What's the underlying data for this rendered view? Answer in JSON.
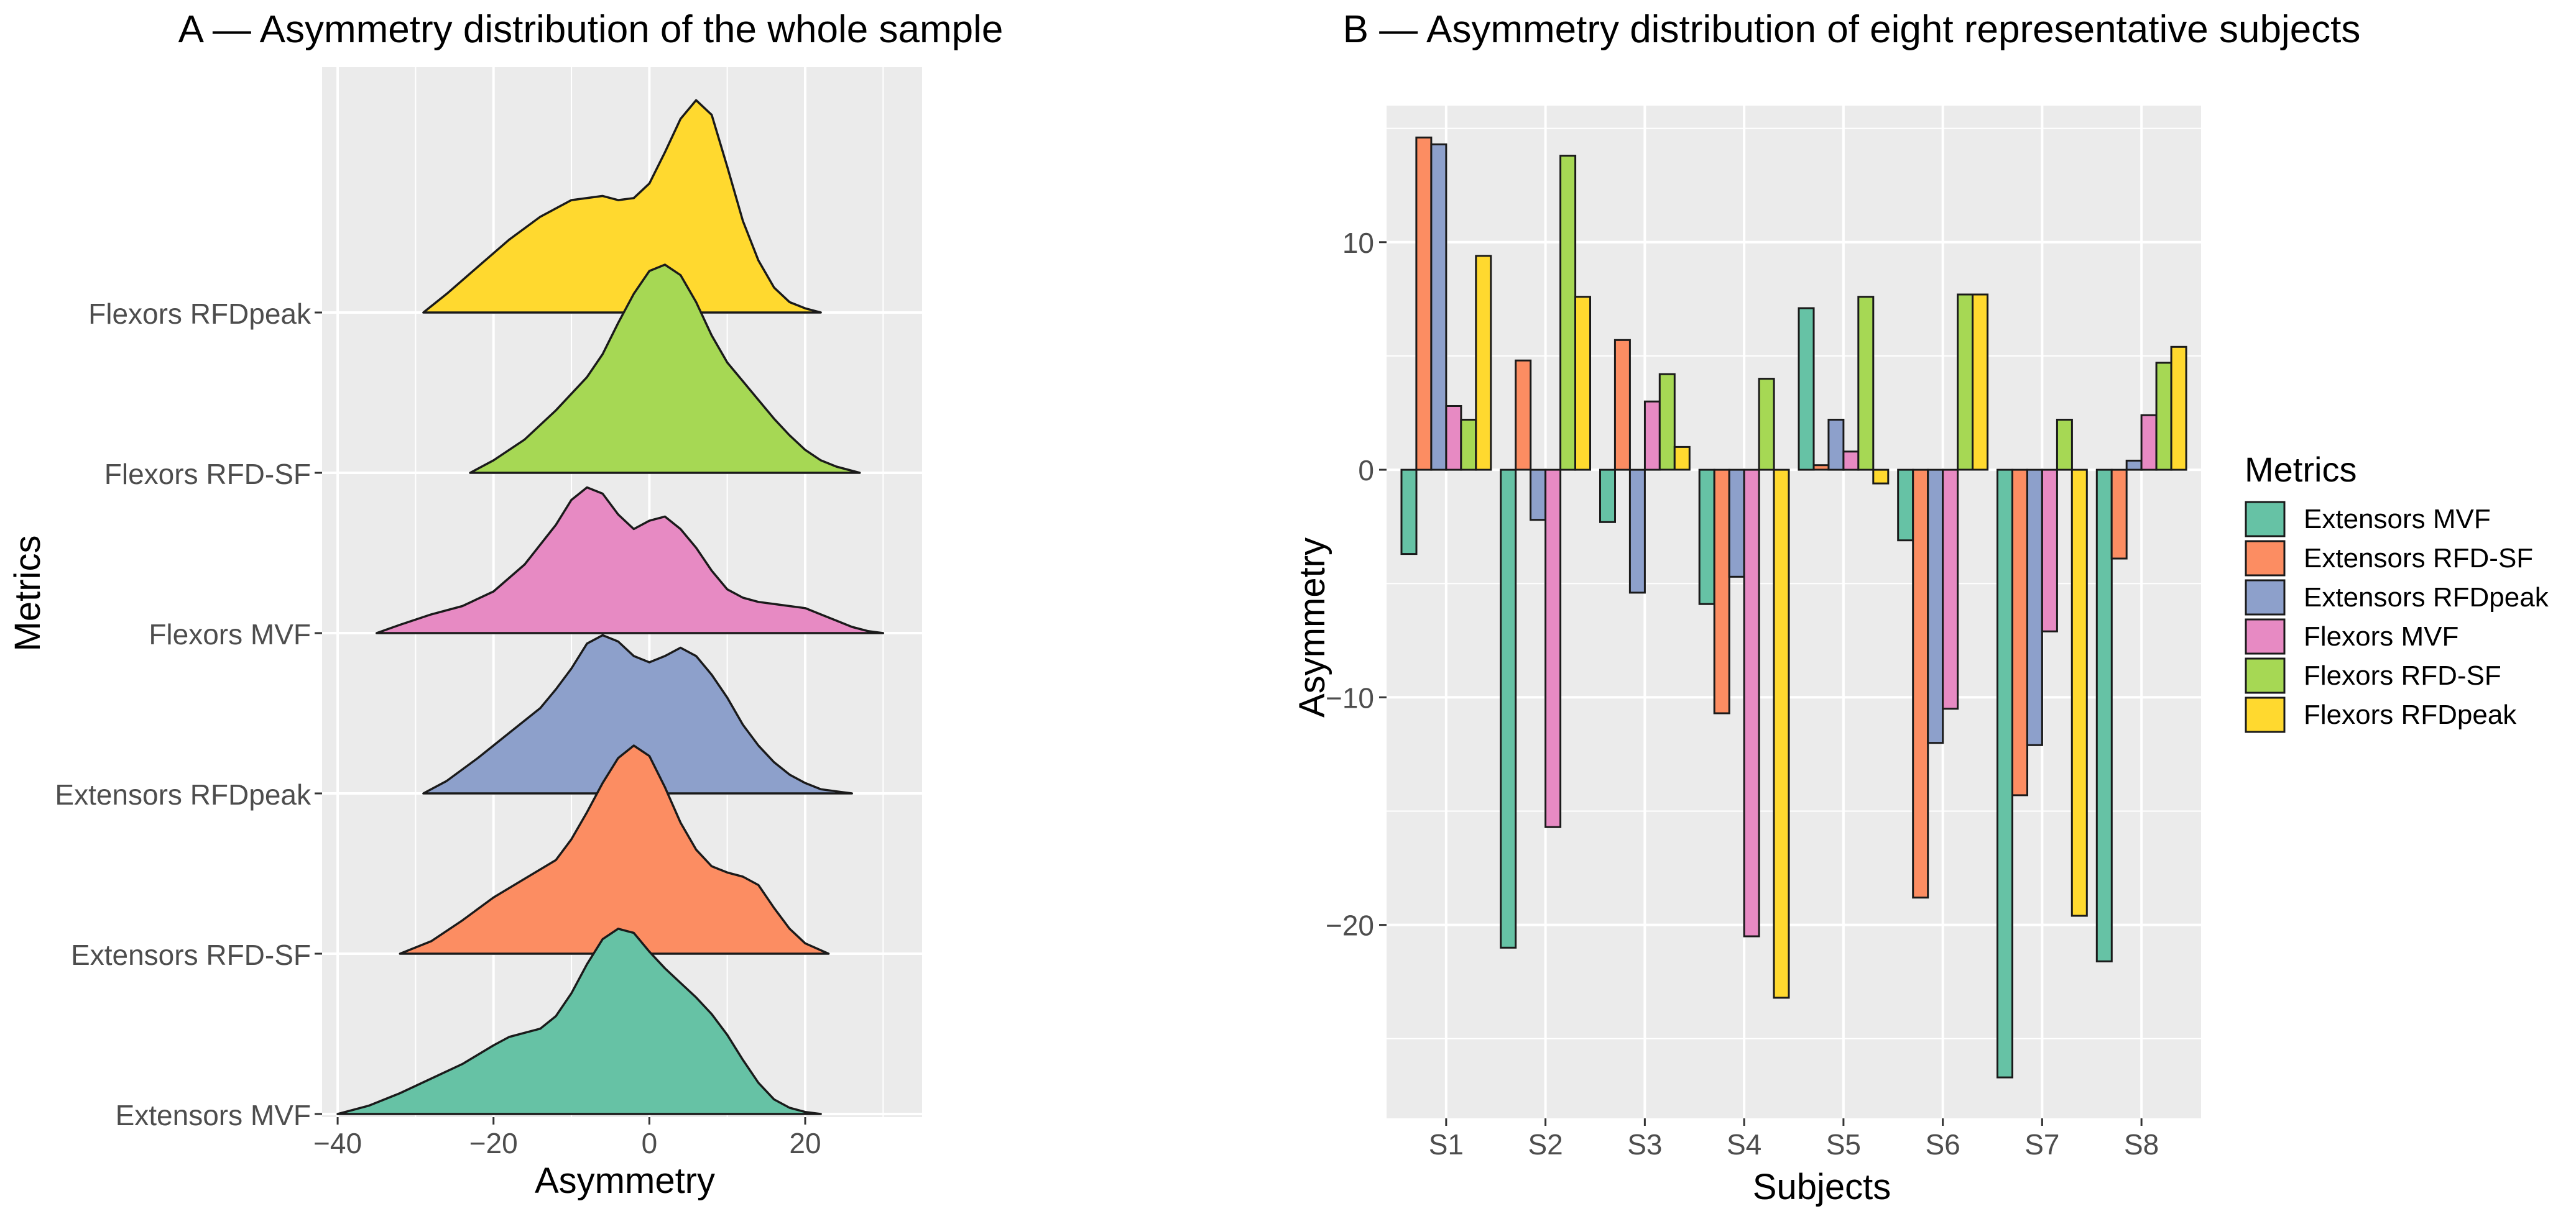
{
  "figure": {
    "panel_a_title": "A — Asymmetry distribution of the whole sample",
    "panel_b_title": "B — Asymmetry distribution of eight representative subjects"
  },
  "palette": {
    "Extensors MVF": "#66c2a5",
    "Extensors RFD-SF": "#fc8d62",
    "Extensors RFDpeak": "#8da0cb",
    "Flexors MVF": "#e78ac3",
    "Flexors RFD-SF": "#a6d854",
    "Flexors RFDpeak": "#ffd92f",
    "panel_bg": "#ebebeb",
    "grid": "#ffffff",
    "outline": "#1a1a1a"
  },
  "chart_data": [
    {
      "type": "ridgeline",
      "title": "A — Asymmetry distribution of the whole sample",
      "xlabel": "Asymmetry",
      "ylabel": "Metrics",
      "xlim": [
        -42,
        35
      ],
      "xticks": [
        -40,
        -20,
        0,
        20
      ],
      "categories": [
        "Extensors MVF",
        "Extensors RFD-SF",
        "Extensors RFDpeak",
        "Flexors MVF",
        "Flexors RFD-SF",
        "Flexors RFDpeak"
      ],
      "series": [
        {
          "name": "Extensors MVF",
          "x": [
            -40,
            -36,
            -32,
            -28,
            -24,
            -20,
            -18,
            -16,
            -14,
            -12,
            -10,
            -8,
            -6,
            -4,
            -2,
            0,
            2,
            4,
            6,
            8,
            10,
            12,
            14,
            16,
            18,
            20,
            22
          ],
          "density": [
            0,
            0.04,
            0.1,
            0.17,
            0.24,
            0.33,
            0.37,
            0.39,
            0.41,
            0.47,
            0.58,
            0.72,
            0.84,
            0.89,
            0.87,
            0.78,
            0.7,
            0.63,
            0.56,
            0.48,
            0.38,
            0.26,
            0.15,
            0.07,
            0.03,
            0.01,
            0
          ]
        },
        {
          "name": "Extensors RFD-SF",
          "x": [
            -32,
            -28,
            -24,
            -20,
            -16,
            -12,
            -10,
            -8,
            -6,
            -4,
            -2,
            0,
            2,
            4,
            6,
            8,
            10,
            12,
            14,
            16,
            18,
            20,
            23
          ],
          "density": [
            0,
            0.06,
            0.16,
            0.27,
            0.36,
            0.45,
            0.55,
            0.68,
            0.82,
            0.94,
            1.0,
            0.95,
            0.8,
            0.63,
            0.5,
            0.42,
            0.39,
            0.37,
            0.33,
            0.22,
            0.12,
            0.05,
            0
          ]
        },
        {
          "name": "Extensors RFDpeak",
          "x": [
            -29,
            -26,
            -22,
            -18,
            -14,
            -12,
            -10,
            -8,
            -6,
            -4,
            -2,
            0,
            2,
            4,
            6,
            8,
            10,
            12,
            14,
            16,
            18,
            20,
            22,
            24,
            26
          ],
          "density": [
            0,
            0.06,
            0.17,
            0.29,
            0.41,
            0.5,
            0.6,
            0.72,
            0.76,
            0.73,
            0.66,
            0.63,
            0.66,
            0.7,
            0.66,
            0.57,
            0.46,
            0.33,
            0.23,
            0.15,
            0.09,
            0.05,
            0.02,
            0.01,
            0
          ]
        },
        {
          "name": "Flexors MVF",
          "x": [
            -35,
            -32,
            -28,
            -24,
            -20,
            -16,
            -12,
            -10,
            -8,
            -6,
            -4,
            -2,
            0,
            2,
            4,
            6,
            8,
            10,
            12,
            14,
            16,
            18,
            20,
            22,
            24,
            26,
            28,
            30
          ],
          "density": [
            0,
            0.04,
            0.09,
            0.13,
            0.2,
            0.33,
            0.52,
            0.64,
            0.7,
            0.67,
            0.57,
            0.5,
            0.54,
            0.56,
            0.5,
            0.41,
            0.3,
            0.21,
            0.17,
            0.15,
            0.14,
            0.13,
            0.12,
            0.09,
            0.06,
            0.03,
            0.01,
            0
          ]
        },
        {
          "name": "Flexors RFD-SF",
          "x": [
            -23,
            -20,
            -16,
            -12,
            -8,
            -6,
            -4,
            -2,
            0,
            2,
            4,
            6,
            8,
            10,
            12,
            14,
            16,
            18,
            20,
            22,
            24,
            27
          ],
          "density": [
            0,
            0.06,
            0.16,
            0.3,
            0.46,
            0.57,
            0.72,
            0.86,
            0.97,
            1.0,
            0.95,
            0.82,
            0.66,
            0.53,
            0.44,
            0.35,
            0.26,
            0.18,
            0.11,
            0.06,
            0.03,
            0
          ]
        },
        {
          "name": "Flexors RFDpeak",
          "x": [
            -29,
            -26,
            -22,
            -18,
            -14,
            -10,
            -6,
            -4,
            -2,
            0,
            2,
            4,
            6,
            8,
            10,
            12,
            14,
            16,
            18,
            20,
            22
          ],
          "density": [
            0,
            0.09,
            0.22,
            0.35,
            0.46,
            0.54,
            0.56,
            0.54,
            0.55,
            0.62,
            0.77,
            0.93,
            1.02,
            0.95,
            0.7,
            0.44,
            0.25,
            0.12,
            0.05,
            0.02,
            0
          ]
        }
      ]
    },
    {
      "type": "bar",
      "title": "B — Asymmetry distribution of eight representative subjects",
      "xlabel": "Subjects",
      "ylabel": "Asymmetry",
      "ylim": [
        -28.5,
        16
      ],
      "yticks": [
        -20,
        -10,
        0,
        10
      ],
      "legend_title": "Metrics",
      "categories": [
        "S1",
        "S2",
        "S3",
        "S4",
        "S5",
        "S6",
        "S7",
        "S8"
      ],
      "series": [
        {
          "name": "Extensors MVF",
          "values": [
            -3.7,
            -21.0,
            -2.3,
            -5.9,
            7.1,
            -3.1,
            -26.7,
            -21.6
          ]
        },
        {
          "name": "Extensors RFD-SF",
          "values": [
            14.6,
            4.8,
            5.7,
            -10.7,
            0.2,
            -18.8,
            -14.3,
            -3.9
          ]
        },
        {
          "name": "Extensors RFDpeak",
          "values": [
            14.3,
            -2.2,
            -5.4,
            -4.7,
            2.2,
            -12.0,
            -12.1,
            0.4
          ]
        },
        {
          "name": "Flexors MVF",
          "values": [
            2.8,
            -15.7,
            3.0,
            -20.5,
            0.8,
            -10.5,
            -7.1,
            2.4
          ]
        },
        {
          "name": "Flexors RFD-SF",
          "values": [
            2.2,
            13.8,
            4.2,
            4.0,
            7.6,
            7.7,
            2.2,
            4.7
          ]
        },
        {
          "name": "Flexors RFDpeak",
          "values": [
            9.4,
            7.6,
            1.0,
            -23.2,
            -0.6,
            7.7,
            -19.6,
            5.4
          ]
        }
      ]
    }
  ]
}
